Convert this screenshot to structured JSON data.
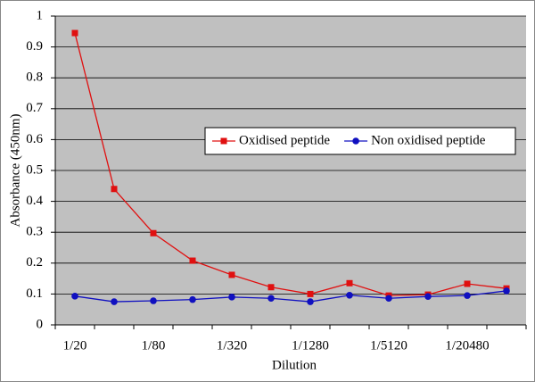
{
  "chart_data": {
    "type": "line",
    "x_label": "Dilution",
    "y_label": "Absorbance (450nm)",
    "categories": [
      "1/20",
      null,
      "1/80",
      null,
      "1/320",
      null,
      "1/1280",
      null,
      "1/5120",
      null,
      "1/20480",
      null
    ],
    "series": [
      {
        "name": "Oxidised peptide",
        "color": "#e01010",
        "marker": "square",
        "values": [
          0.945,
          0.44,
          0.297,
          0.208,
          0.162,
          0.122,
          0.1,
          0.135,
          0.095,
          0.098,
          0.133,
          0.118
        ]
      },
      {
        "name": "Non oxidised peptide",
        "color": "#1010c0",
        "marker": "circle",
        "values": [
          0.093,
          0.075,
          0.078,
          0.082,
          0.09,
          0.086,
          0.075,
          0.096,
          0.086,
          0.092,
          0.095,
          0.11
        ]
      }
    ],
    "ylim": [
      0,
      1
    ],
    "yticks": [
      0,
      0.1,
      0.2,
      0.3,
      0.4,
      0.5,
      0.6,
      0.7,
      0.8,
      0.9,
      1
    ],
    "grid": true,
    "legend": "right"
  }
}
